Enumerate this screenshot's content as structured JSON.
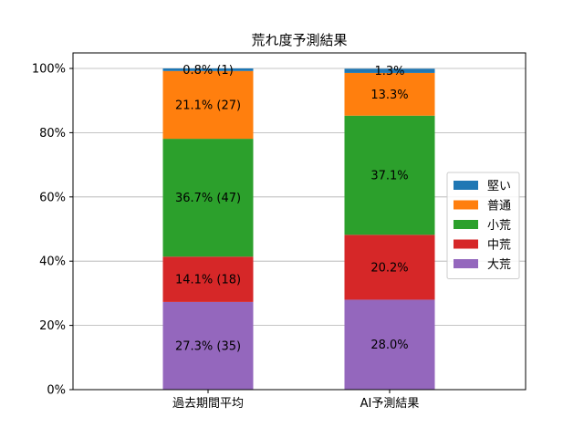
{
  "chart_data": {
    "type": "bar",
    "stacked": true,
    "title": "荒れ度予測結果",
    "xlabel": "",
    "ylabel": "",
    "ylim": [
      0,
      100
    ],
    "y_ticks": [
      "0%",
      "20%",
      "40%",
      "60%",
      "80%",
      "100%"
    ],
    "grid": "y",
    "legend_position": "center-right",
    "categories": [
      "過去期間平均",
      "AI予測結果"
    ],
    "series": [
      {
        "name": "大荒",
        "color": "#9467bd",
        "values": [
          27.3,
          28.0
        ],
        "labels": [
          "27.3% (35)",
          "28.0%"
        ]
      },
      {
        "name": "中荒",
        "color": "#d62728",
        "values": [
          14.1,
          20.2
        ],
        "labels": [
          "14.1% (18)",
          "20.2%"
        ]
      },
      {
        "name": "小荒",
        "color": "#2ca02c",
        "values": [
          36.7,
          37.1
        ],
        "labels": [
          "36.7% (47)",
          "37.1%"
        ]
      },
      {
        "name": "普通",
        "color": "#ff7f0e",
        "values": [
          21.1,
          13.3
        ],
        "labels": [
          "21.1% (27)",
          "13.3%"
        ]
      },
      {
        "name": "堅い",
        "color": "#1f77b4",
        "values": [
          0.8,
          1.3
        ],
        "labels": [
          "0.8% (1)",
          "1.3%"
        ]
      }
    ],
    "legend_order": [
      "堅い",
      "普通",
      "小荒",
      "中荒",
      "大荒"
    ]
  }
}
